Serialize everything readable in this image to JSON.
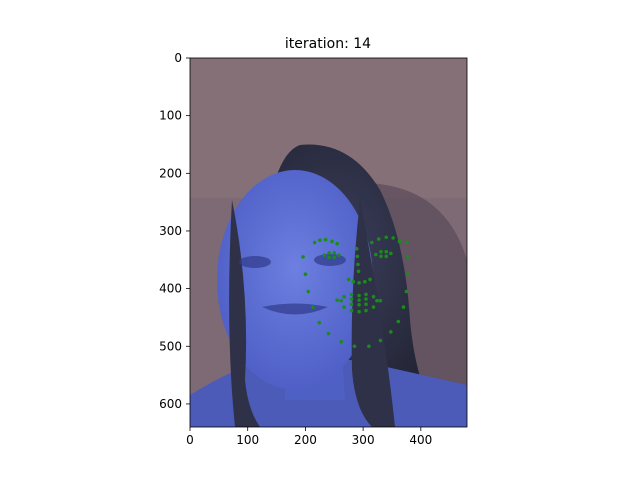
{
  "chart_data": {
    "type": "scatter",
    "title": "iteration: 14",
    "xlabel": "",
    "ylabel": "",
    "xlim": [
      0,
      480
    ],
    "ylim": [
      640,
      0
    ],
    "x_ticks": [
      0,
      100,
      200,
      300,
      400
    ],
    "y_ticks": [
      0,
      100,
      200,
      300,
      400,
      500,
      600
    ],
    "grid": false,
    "background_image": "grayscale-tinted-photo-of-person-face-with-long-hair",
    "image_tint": "#5b6fd6",
    "point_color": "#1a8c1a",
    "series": [
      {
        "points": [
          [
            196,
            345
          ],
          [
            200,
            375
          ],
          [
            205,
            405
          ],
          [
            213,
            432
          ],
          [
            224,
            459
          ],
          [
            240,
            478
          ],
          [
            262,
            492
          ],
          [
            285,
            500
          ],
          [
            310,
            500
          ],
          [
            330,
            490
          ],
          [
            348,
            475
          ],
          [
            361,
            457
          ],
          [
            370,
            432
          ],
          [
            375,
            405
          ],
          [
            378,
            375
          ],
          [
            378,
            345
          ],
          [
            376,
            320
          ],
          [
            216,
            320
          ],
          [
            225,
            316
          ],
          [
            235,
            315
          ],
          [
            246,
            318
          ],
          [
            255,
            322
          ],
          [
            315,
            320
          ],
          [
            327,
            314
          ],
          [
            340,
            311
          ],
          [
            352,
            312
          ],
          [
            363,
            318
          ],
          [
            289,
            331
          ],
          [
            290,
            344
          ],
          [
            291,
            358
          ],
          [
            292,
            370
          ],
          [
            275,
            384
          ],
          [
            283,
            388
          ],
          [
            293,
            390
          ],
          [
            303,
            388
          ],
          [
            312,
            384
          ],
          [
            233,
            342
          ],
          [
            241,
            338
          ],
          [
            250,
            338
          ],
          [
            258,
            342
          ],
          [
            250,
            346
          ],
          [
            241,
            346
          ],
          [
            322,
            341
          ],
          [
            331,
            336
          ],
          [
            340,
            336
          ],
          [
            348,
            339
          ],
          [
            340,
            344
          ],
          [
            331,
            344
          ],
          [
            255,
            420
          ],
          [
            267,
            414
          ],
          [
            280,
            410
          ],
          [
            293,
            412
          ],
          [
            305,
            410
          ],
          [
            318,
            414
          ],
          [
            330,
            421
          ],
          [
            318,
            432
          ],
          [
            305,
            438
          ],
          [
            293,
            440
          ],
          [
            280,
            438
          ],
          [
            267,
            432
          ],
          [
            262,
            421
          ],
          [
            280,
            418
          ],
          [
            293,
            420
          ],
          [
            305,
            418
          ],
          [
            324,
            421
          ],
          [
            305,
            427
          ],
          [
            293,
            428
          ],
          [
            280,
            427
          ]
        ]
      }
    ]
  }
}
